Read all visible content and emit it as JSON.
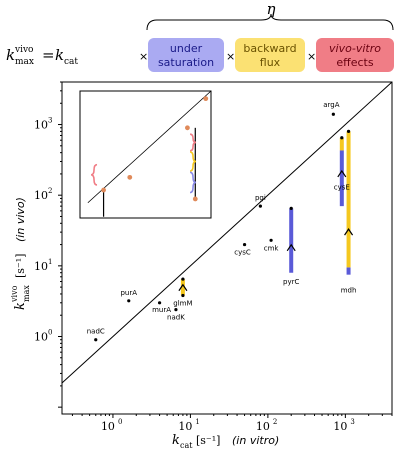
{
  "header": {
    "lhs_k": "k",
    "lhs_sup": "vivo",
    "lhs_sub": "max",
    "eq": "=",
    "rhs_k": "k",
    "rhs_sub": "cat",
    "eta": "η",
    "times": "×",
    "boxes": [
      {
        "line1": "under",
        "line2": "saturation",
        "color": "#aaaaf2",
        "text_color": "#1a1a88",
        "italic": false
      },
      {
        "line1": "backward",
        "line2": "flux",
        "color": "#fbe173",
        "text_color": "#6a5200",
        "italic": false
      },
      {
        "line1": "vivo-vitro",
        "line2": "effects",
        "color": "#f07d86",
        "text_color": "#6a0010",
        "italic": true
      }
    ]
  },
  "chart_data": {
    "type": "scatter",
    "scale": "log-log",
    "xlim": [
      0.22,
      4000
    ],
    "ylim": [
      0.08,
      4000
    ],
    "xlabel": {
      "k": "k",
      "sub": "cat",
      "unit": "[s⁻¹]",
      "note": "(in vitro)"
    },
    "ylabel": {
      "k": "k",
      "sup": "vivo",
      "sub": "max",
      "unit": "[s⁻¹]",
      "note": "(in vivo)"
    },
    "x_ticks": [
      {
        "value": 1,
        "label": "10",
        "exp": "0"
      },
      {
        "value": 10,
        "label": "10",
        "exp": "1"
      },
      {
        "value": 100,
        "label": "10",
        "exp": "2"
      },
      {
        "value": 1000,
        "label": "10",
        "exp": "3"
      }
    ],
    "y_ticks": [
      {
        "value": 1,
        "label": "10",
        "exp": "0"
      },
      {
        "value": 10,
        "label": "10",
        "exp": "1"
      },
      {
        "value": 100,
        "label": "10",
        "exp": "2"
      },
      {
        "value": 1000,
        "label": "10",
        "exp": "3"
      }
    ],
    "points": [
      {
        "name": "argA",
        "x": 700,
        "y": 1400
      },
      {
        "name": "pgi",
        "x": 80,
        "y": 70
      },
      {
        "name": "cmk",
        "x": 110,
        "y": 23
      },
      {
        "name": "cysC",
        "x": 50,
        "y": 20
      },
      {
        "name": "purA",
        "x": 1.6,
        "y": 3.2
      },
      {
        "name": "murA",
        "x": 4,
        "y": 3.0
      },
      {
        "name": "glmM",
        "x": 8,
        "y": 3.8
      },
      {
        "name": "nadK",
        "x": 6.5,
        "y": 2.4
      },
      {
        "name": "nadC",
        "x": 0.6,
        "y": 0.9
      }
    ],
    "bars": [
      {
        "name": "cysE",
        "x": 900,
        "segments": [
          {
            "from": 70,
            "to": 430,
            "color": "#5a5ad8"
          },
          {
            "from": 430,
            "to": 650,
            "color": "#f5c81f"
          }
        ]
      },
      {
        "name": "mdh",
        "x": 1100,
        "segments": [
          {
            "from": 7.5,
            "to": 9.5,
            "color": "#5a5ad8"
          },
          {
            "from": 9.5,
            "to": 800,
            "color": "#f5c81f"
          }
        ]
      },
      {
        "name": "pyrC",
        "x": 200,
        "segments": [
          {
            "from": 8,
            "to": 65,
            "color": "#5a5ad8"
          }
        ]
      },
      {
        "name": "glmM-bar",
        "x": 8,
        "segments": [
          {
            "from": 3.8,
            "to": 6.5,
            "color": "#f5c81f"
          }
        ]
      }
    ],
    "arrows": [
      {
        "x": 900,
        "y": 200
      },
      {
        "x": 1100,
        "y": 30
      },
      {
        "x": 200,
        "y": 18
      },
      {
        "x": 8,
        "y": 4.9
      }
    ],
    "inset": {
      "points": [
        {
          "x": 0.18,
          "y": 0.22,
          "color": "#e08a5a"
        },
        {
          "x": 0.38,
          "y": 0.32,
          "color": "#e08a5a"
        },
        {
          "x": 0.88,
          "y": 0.15,
          "color": "#e08a5a"
        },
        {
          "x": 0.82,
          "y": 0.71,
          "color": "#e08a5a"
        },
        {
          "x": 0.96,
          "y": 0.94,
          "color": "#e08a5a"
        }
      ],
      "braces": [
        {
          "x": 0.13,
          "y0": 0.26,
          "y1": 0.42,
          "color": "#f07d86",
          "side": "left"
        },
        {
          "x": 0.84,
          "y0": 0.53,
          "y1": 0.66,
          "color": "#f07d86",
          "side": "right"
        },
        {
          "x": 0.84,
          "y0": 0.37,
          "y1": 0.52,
          "color": "#f5c81f",
          "side": "right"
        },
        {
          "x": 0.84,
          "y0": 0.2,
          "y1": 0.36,
          "color": "#8a8ae8",
          "side": "right"
        }
      ]
    }
  }
}
